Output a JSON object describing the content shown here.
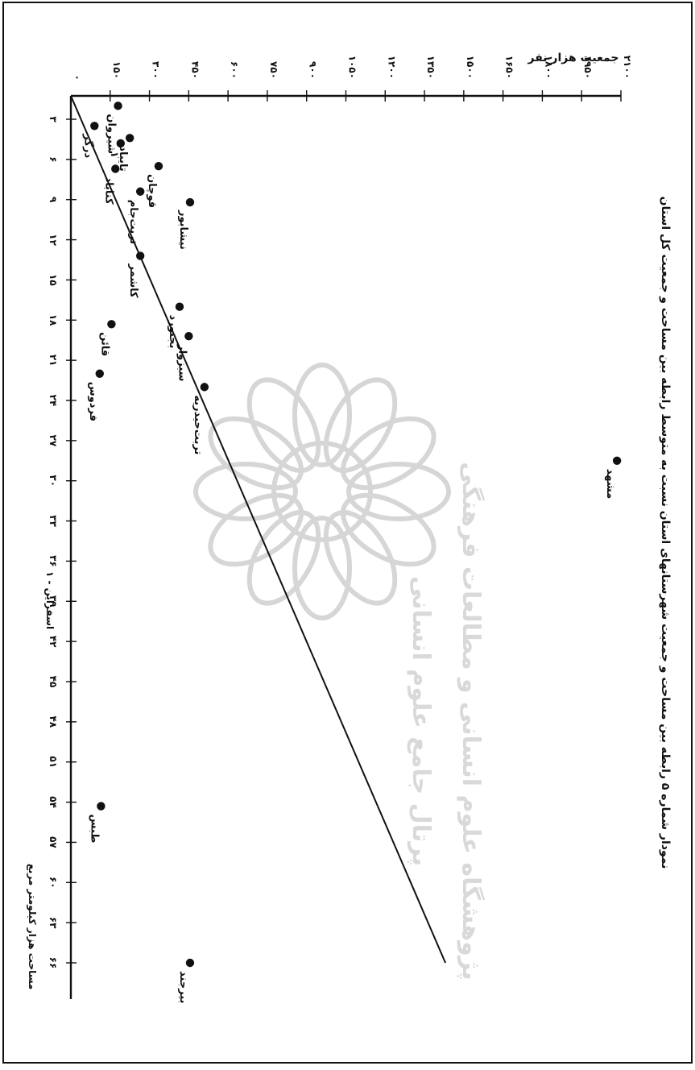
{
  "chart_data": {
    "type": "scatter",
    "title": "نمودار شماره ۵ رابطه بین مساحت و جمعیت شهرستانهای استان نسبت به متوسط رابطه بین مساحت و جمعیت کل استان",
    "xlabel": "مساحت هزار کیلومتر مربع",
    "ylabel": "جمعیت هزار نفر",
    "x_ticks": [
      "۳",
      "۶",
      "۹",
      "۱۲",
      "۱۵",
      "۱۸",
      "۲۱",
      "۲۴",
      "۲۷",
      "۳۰",
      "۳۳",
      "۳۶",
      "۳۹",
      "۴۲",
      "۴۵",
      "۴۸",
      "۵۱",
      "۵۴",
      "۵۷",
      "۶۰",
      "۶۳",
      "۶۶"
    ],
    "y_ticks": [
      "۰",
      "۱۵۰",
      "۳۰۰",
      "۴۵۰",
      "۶۰۰",
      "۷۵۰",
      "۹۰۰",
      "۱۰۵۰",
      "۱۲۰۰",
      "۱۳۵۰",
      "۱۵۰۰",
      "۱۶۵۰",
      "۱۸۰۰",
      "۱۹۵۰",
      "۲۱۰۰"
    ],
    "xlim": [
      0,
      66
    ],
    "ylim": [
      0,
      2100
    ],
    "grid": false,
    "footnote": "۱ - اسفراین",
    "points": [
      {
        "label": "شیروان",
        "x": 2.0,
        "y": 180
      },
      {
        "label": "تایباد",
        "x": 4.4,
        "y": 225
      },
      {
        "label": "۱",
        "x": 4.8,
        "y": 190
      },
      {
        "label": "درگز",
        "x": 3.5,
        "y": 90
      },
      {
        "label": "کناباد",
        "x": 6.7,
        "y": 170
      },
      {
        "label": "قوچان",
        "x": 6.5,
        "y": 335
      },
      {
        "label": "تربت‌جام",
        "x": 8.4,
        "y": 265
      },
      {
        "label": "نیشابور",
        "x": 9.2,
        "y": 455
      },
      {
        "label": "کاشمر",
        "x": 13.2,
        "y": 265
      },
      {
        "label": "بجنورد",
        "x": 17.0,
        "y": 415
      },
      {
        "label": "قائن",
        "x": 18.3,
        "y": 155
      },
      {
        "label": "سبزوار",
        "x": 19.2,
        "y": 450
      },
      {
        "label": "فردوس",
        "x": 22.0,
        "y": 110
      },
      {
        "label": "تربت‌حیدریه",
        "x": 23.0,
        "y": 510
      },
      {
        "label": "طبس",
        "x": 54.3,
        "y": 115
      },
      {
        "label": "مشهد",
        "x": 28.5,
        "y": 2085
      },
      {
        "label": "بیرجند",
        "x": 66.0,
        "y": 455
      }
    ],
    "trendline": {
      "from": {
        "x": 0,
        "y": 0
      },
      "to": {
        "x": 66,
        "y": 1430
      }
    }
  },
  "watermark": {
    "line1": "پژوهشگاه علوم انسانی و مطالعات فرهنگی",
    "line2": "پرتال جامع علوم انسانی"
  }
}
